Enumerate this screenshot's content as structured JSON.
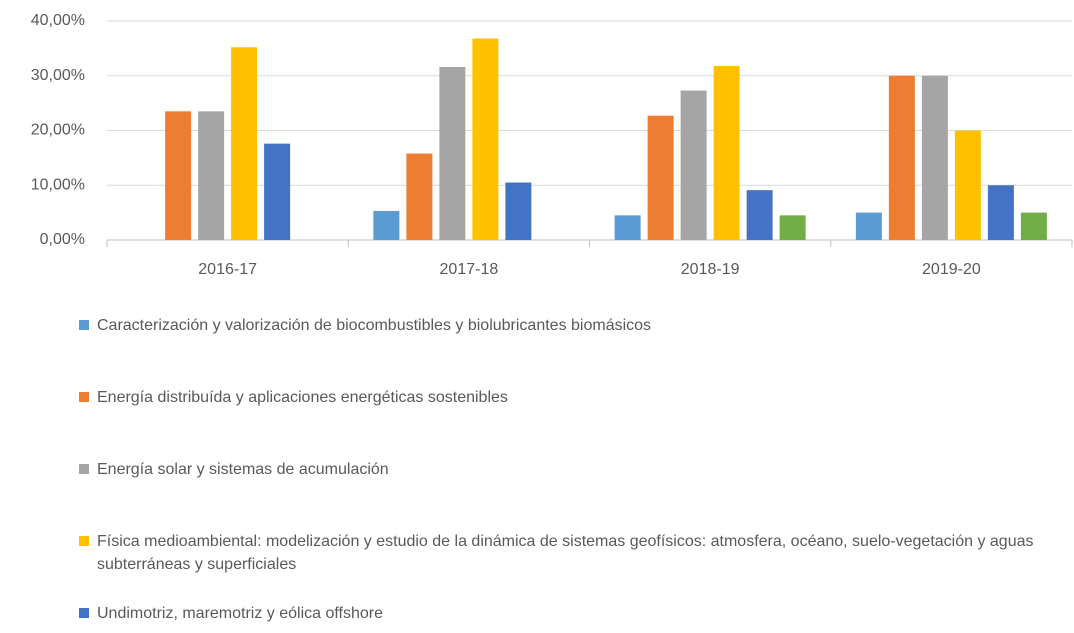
{
  "chart_data": {
    "type": "bar",
    "categories": [
      "2016-17",
      "2017-18",
      "2018-19",
      "2019-20"
    ],
    "series": [
      {
        "name": "Caracterización y valorización de biocombustibles y biolubricantes biomásicos",
        "color": "#5b9bd5",
        "values": [
          0,
          5.3,
          4.5,
          5
        ]
      },
      {
        "name": "Energía distribuída y aplicaciones energéticas sostenibles",
        "color": "#ed7d31",
        "values": [
          23.5,
          15.8,
          22.7,
          30
        ]
      },
      {
        "name": "Energía solar y sistemas de acumulación",
        "color": "#a5a5a5",
        "values": [
          23.5,
          31.6,
          27.3,
          30
        ]
      },
      {
        "name": "Física medioambiental: modelización y estudio de la dinámica de sistemas geofísicos: atmosfera, océano, suelo-vegetación y aguas subterráneas y superficiales",
        "color": "#ffc000",
        "values": [
          35.2,
          36.8,
          31.8,
          20
        ]
      },
      {
        "name": "Undimotriz, maremotriz y eólica offshore",
        "color": "#4472c4",
        "values": [
          17.6,
          10.5,
          9.1,
          10
        ]
      },
      {
        "color": "#70ad47",
        "values": [
          0,
          0,
          4.5,
          5
        ]
      }
    ],
    "ylim": [
      0,
      40
    ],
    "yticks": [
      {
        "value": 0,
        "label": "0,00%"
      },
      {
        "value": 10,
        "label": "10,00%"
      },
      {
        "value": 20,
        "label": "20,00%"
      },
      {
        "value": 30,
        "label": "30,00%"
      },
      {
        "value": 40,
        "label": "40,00%"
      }
    ],
    "grid": true,
    "legend": "bottom"
  }
}
